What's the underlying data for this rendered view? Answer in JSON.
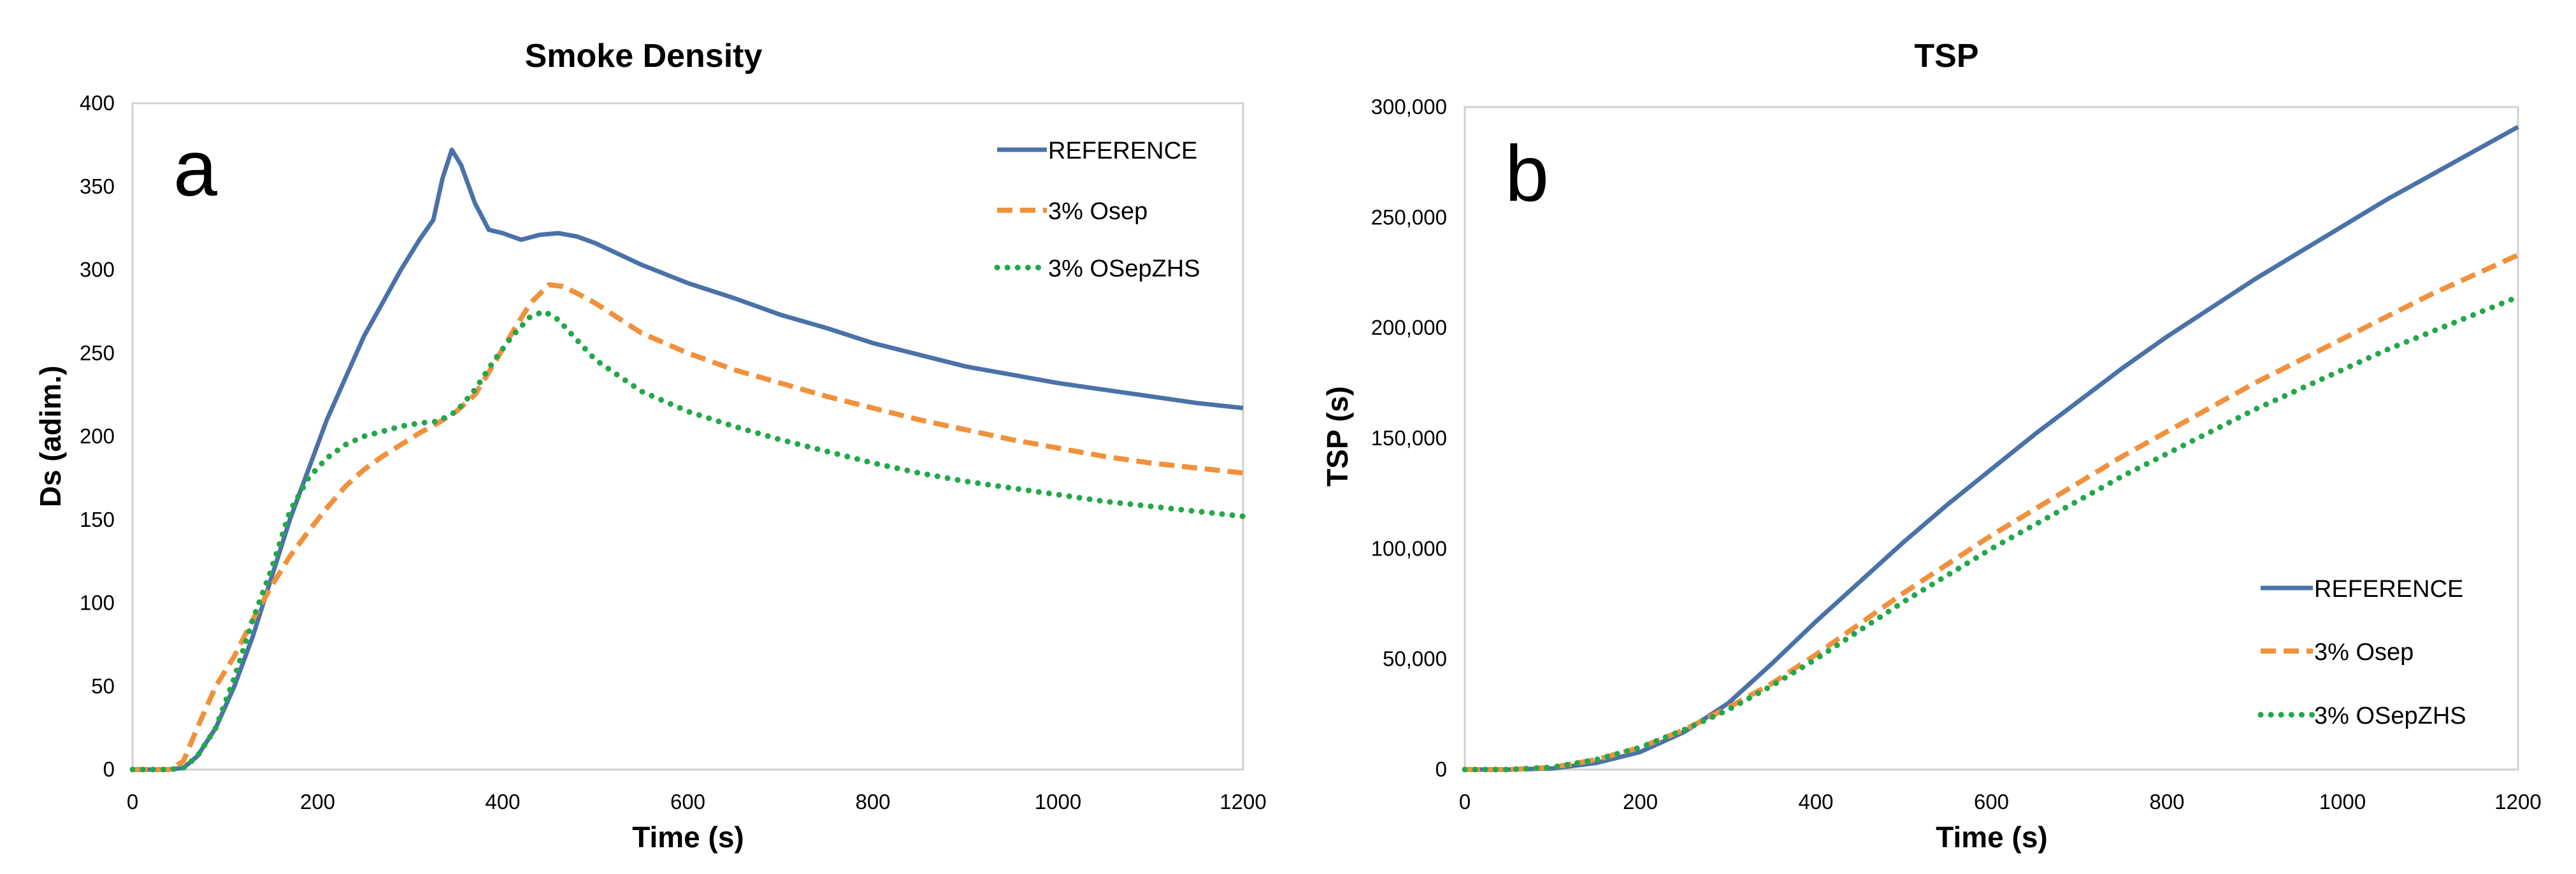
{
  "chart_data": [
    {
      "type": "line",
      "title": "Smoke Density",
      "panel_label": "a",
      "xlabel": "Time (s)",
      "ylabel": "Ds (adim.)",
      "xlim": [
        0,
        1200
      ],
      "ylim": [
        0,
        400
      ],
      "xticks": [
        0,
        200,
        400,
        600,
        800,
        1000,
        1200
      ],
      "yticks": [
        0,
        50,
        100,
        150,
        200,
        250,
        300,
        350,
        400
      ],
      "xtick_labels": [
        "0",
        "200",
        "400",
        "600",
        "800",
        "1000",
        "1200"
      ],
      "ytick_labels": [
        "0",
        "50",
        "100",
        "150",
        "200",
        "250",
        "300",
        "350",
        "400"
      ],
      "grid": false,
      "legend": "top-right",
      "series": [
        {
          "name": "REFERENCE",
          "color": "#4a72a8",
          "style": "solid",
          "points": [
            [
              0,
              0
            ],
            [
              40,
              0
            ],
            [
              55,
              1
            ],
            [
              70,
              8
            ],
            [
              90,
              25
            ],
            [
              110,
              50
            ],
            [
              130,
              80
            ],
            [
              150,
              115
            ],
            [
              170,
              150
            ],
            [
              190,
              180
            ],
            [
              210,
              210
            ],
            [
              230,
              235
            ],
            [
              250,
              260
            ],
            [
              270,
              280
            ],
            [
              290,
              300
            ],
            [
              310,
              318
            ],
            [
              325,
              330
            ],
            [
              335,
              355
            ],
            [
              345,
              372
            ],
            [
              355,
              363
            ],
            [
              370,
              340
            ],
            [
              385,
              324
            ],
            [
              400,
              322
            ],
            [
              420,
              318
            ],
            [
              440,
              321
            ],
            [
              460,
              322
            ],
            [
              480,
              320
            ],
            [
              500,
              316
            ],
            [
              550,
              303
            ],
            [
              600,
              292
            ],
            [
              650,
              283
            ],
            [
              700,
              273
            ],
            [
              750,
              265
            ],
            [
              800,
              256
            ],
            [
              850,
              249
            ],
            [
              900,
              242
            ],
            [
              950,
              237
            ],
            [
              1000,
              232
            ],
            [
              1050,
              228
            ],
            [
              1100,
              224
            ],
            [
              1150,
              220
            ],
            [
              1200,
              217
            ]
          ]
        },
        {
          "name": "3% Osep",
          "color": "#f0913c",
          "style": "dashed",
          "points": [
            [
              0,
              0
            ],
            [
              40,
              0
            ],
            [
              55,
              5
            ],
            [
              70,
              25
            ],
            [
              90,
              50
            ],
            [
              110,
              68
            ],
            [
              130,
              90
            ],
            [
              150,
              110
            ],
            [
              170,
              128
            ],
            [
              190,
              143
            ],
            [
              210,
              157
            ],
            [
              230,
              170
            ],
            [
              250,
              180
            ],
            [
              270,
              188
            ],
            [
              290,
              195
            ],
            [
              310,
              202
            ],
            [
              330,
              208
            ],
            [
              350,
              215
            ],
            [
              370,
              225
            ],
            [
              390,
              243
            ],
            [
              410,
              262
            ],
            [
              430,
              280
            ],
            [
              450,
              291
            ],
            [
              465,
              290
            ],
            [
              480,
              286
            ],
            [
              500,
              280
            ],
            [
              550,
              262
            ],
            [
              600,
              250
            ],
            [
              650,
              240
            ],
            [
              700,
              232
            ],
            [
              750,
              224
            ],
            [
              800,
              217
            ],
            [
              850,
              210
            ],
            [
              900,
              204
            ],
            [
              950,
              198
            ],
            [
              1000,
              193
            ],
            [
              1050,
              188
            ],
            [
              1100,
              184
            ],
            [
              1150,
              181
            ],
            [
              1200,
              178
            ]
          ]
        },
        {
          "name": "3% OSepZHS",
          "color": "#22a84a",
          "style": "dotted",
          "points": [
            [
              0,
              0
            ],
            [
              40,
              0
            ],
            [
              55,
              1
            ],
            [
              70,
              8
            ],
            [
              90,
              25
            ],
            [
              110,
              55
            ],
            [
              130,
              90
            ],
            [
              150,
              120
            ],
            [
              170,
              155
            ],
            [
              190,
              175
            ],
            [
              210,
              187
            ],
            [
              230,
              195
            ],
            [
              250,
              200
            ],
            [
              270,
              203
            ],
            [
              290,
              206
            ],
            [
              310,
              208
            ],
            [
              330,
              209
            ],
            [
              350,
              215
            ],
            [
              370,
              228
            ],
            [
              390,
              245
            ],
            [
              410,
              260
            ],
            [
              430,
              272
            ],
            [
              445,
              275
            ],
            [
              460,
              270
            ],
            [
              480,
              258
            ],
            [
              500,
              246
            ],
            [
              550,
              227
            ],
            [
              600,
              215
            ],
            [
              650,
              206
            ],
            [
              700,
              198
            ],
            [
              750,
              191
            ],
            [
              800,
              184
            ],
            [
              850,
              178
            ],
            [
              900,
              173
            ],
            [
              950,
              169
            ],
            [
              1000,
              165
            ],
            [
              1050,
              161
            ],
            [
              1100,
              158
            ],
            [
              1150,
              155
            ],
            [
              1200,
              152
            ]
          ]
        }
      ]
    },
    {
      "type": "line",
      "title": "TSP",
      "panel_label": "b",
      "xlabel": "Time (s)",
      "ylabel": "TSP (s)",
      "xlim": [
        0,
        1200
      ],
      "ylim": [
        0,
        300000
      ],
      "xticks": [
        0,
        200,
        400,
        600,
        800,
        1000,
        1200
      ],
      "yticks": [
        0,
        50000,
        100000,
        150000,
        200000,
        250000,
        300000
      ],
      "xtick_labels": [
        "0",
        "200",
        "400",
        "600",
        "800",
        "1000",
        "1200"
      ],
      "ytick_labels": [
        "0",
        "50,000",
        "100,000",
        "150,000",
        "200,000",
        "250,000",
        "300,000"
      ],
      "grid": false,
      "legend": "bottom-right",
      "series": [
        {
          "name": "REFERENCE",
          "color": "#4a72a8",
          "style": "solid",
          "points": [
            [
              0,
              0
            ],
            [
              50,
              0
            ],
            [
              100,
              500
            ],
            [
              150,
              3000
            ],
            [
              200,
              8000
            ],
            [
              250,
              17000
            ],
            [
              300,
              30000
            ],
            [
              350,
              48000
            ],
            [
              400,
              67000
            ],
            [
              450,
              85000
            ],
            [
              500,
              103000
            ],
            [
              550,
              120000
            ],
            [
              600,
              136000
            ],
            [
              650,
              152000
            ],
            [
              700,
              167000
            ],
            [
              750,
              182000
            ],
            [
              800,
              196000
            ],
            [
              850,
              209000
            ],
            [
              900,
              222000
            ],
            [
              950,
              234000
            ],
            [
              1000,
              246000
            ],
            [
              1050,
              258000
            ],
            [
              1100,
              269000
            ],
            [
              1150,
              280000
            ],
            [
              1200,
              291000
            ]
          ]
        },
        {
          "name": "3% Osep",
          "color": "#f0913c",
          "style": "dashed",
          "points": [
            [
              0,
              0
            ],
            [
              50,
              0
            ],
            [
              100,
              1000
            ],
            [
              150,
              4500
            ],
            [
              200,
              10000
            ],
            [
              250,
              18000
            ],
            [
              300,
              28000
            ],
            [
              350,
              39000
            ],
            [
              400,
              52000
            ],
            [
              450,
              66000
            ],
            [
              500,
              80000
            ],
            [
              550,
              93000
            ],
            [
              600,
              106000
            ],
            [
              650,
              118000
            ],
            [
              700,
              130000
            ],
            [
              750,
              142000
            ],
            [
              800,
              153000
            ],
            [
              850,
              164000
            ],
            [
              900,
              175000
            ],
            [
              950,
              185000
            ],
            [
              1000,
              195000
            ],
            [
              1050,
              205000
            ],
            [
              1100,
              215000
            ],
            [
              1150,
              224000
            ],
            [
              1200,
              233000
            ]
          ]
        },
        {
          "name": "3% OSepZHS",
          "color": "#22a84a",
          "style": "dotted",
          "points": [
            [
              0,
              0
            ],
            [
              50,
              0
            ],
            [
              100,
              1000
            ],
            [
              150,
              4500
            ],
            [
              200,
              10000
            ],
            [
              250,
              18000
            ],
            [
              300,
              27000
            ],
            [
              350,
              38000
            ],
            [
              400,
              50000
            ],
            [
              450,
              63000
            ],
            [
              500,
              76000
            ],
            [
              550,
              88000
            ],
            [
              600,
              100000
            ],
            [
              650,
              111000
            ],
            [
              700,
              122000
            ],
            [
              750,
              133000
            ],
            [
              800,
              143000
            ],
            [
              850,
              153000
            ],
            [
              900,
              163000
            ],
            [
              950,
              172000
            ],
            [
              1000,
              181000
            ],
            [
              1050,
              190000
            ],
            [
              1100,
              198000
            ],
            [
              1150,
              206000
            ],
            [
              1200,
              214000
            ]
          ]
        }
      ]
    }
  ]
}
